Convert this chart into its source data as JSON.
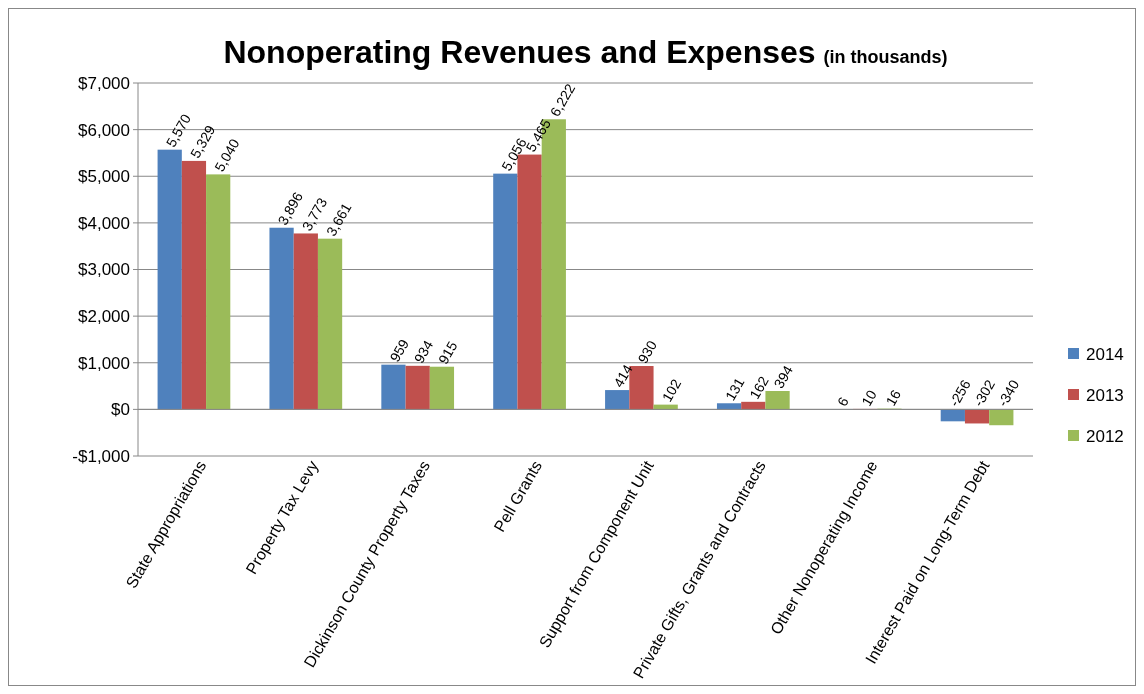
{
  "chart_data": {
    "type": "bar",
    "title": "Nonoperating Revenues and Expenses",
    "subtitle": "(in thousands)",
    "categories": [
      "State Appropriations",
      "Property Tax Levy",
      "Dickinson County Property Taxes",
      "Pell Grants",
      "Support from Component Unit",
      "Private Gifts, Grants and Contracts",
      "Other Nonoperating Income",
      "Interest Paid on Long-Term Debt"
    ],
    "series": [
      {
        "name": "2014",
        "color": "#4f81bd",
        "values": [
          5570,
          3896,
          959,
          5056,
          414,
          131,
          6,
          -256
        ],
        "value_labels": [
          "5,570",
          "3,896",
          "959",
          "5,056",
          "414",
          "131",
          "6",
          "-256"
        ]
      },
      {
        "name": "2013",
        "color": "#c0504d",
        "values": [
          5329,
          3773,
          934,
          5465,
          930,
          162,
          10,
          -302
        ],
        "value_labels": [
          "5,329",
          "3,773",
          "934",
          "5,465",
          "930",
          "162",
          "10",
          "-302"
        ]
      },
      {
        "name": "2012",
        "color": "#9bbb59",
        "values": [
          5040,
          3661,
          915,
          6222,
          102,
          394,
          16,
          -340
        ],
        "value_labels": [
          "5,040",
          "3,661",
          "915",
          "6,222",
          "102",
          "394",
          "16",
          "-340"
        ]
      }
    ],
    "ylim": [
      -1000,
      7000
    ],
    "yticks": [
      {
        "value": -1000,
        "label": "-$1,000"
      },
      {
        "value": 0,
        "label": "$0"
      },
      {
        "value": 1000,
        "label": "$1,000"
      },
      {
        "value": 2000,
        "label": "$2,000"
      },
      {
        "value": 3000,
        "label": "$3,000"
      },
      {
        "value": 4000,
        "label": "$4,000"
      },
      {
        "value": 5000,
        "label": "$5,000"
      },
      {
        "value": 6000,
        "label": "$6,000"
      },
      {
        "value": 7000,
        "label": "$7,000"
      }
    ],
    "grid": "y",
    "legend": "right"
  }
}
